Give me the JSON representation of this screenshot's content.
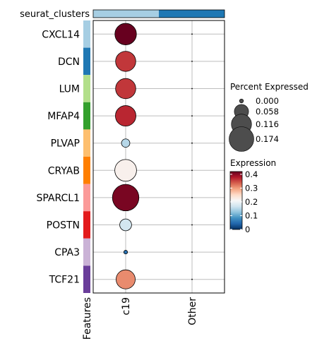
{
  "chart_data": {
    "type": "dotplot",
    "title": "",
    "annotation_label": "seurat_clusters",
    "xlabel": "Features",
    "ylabel": "",
    "features": [
      "CXCL14",
      "DCN",
      "LUM",
      "MFAP4",
      "PLVAP",
      "CRYAB",
      "SPARCL1",
      "POSTN",
      "CPA3",
      "TCF21"
    ],
    "feature_colors": [
      "#A6CEE3",
      "#1F78B4",
      "#B2DF8A",
      "#33A02C",
      "#FDBF6F",
      "#FF7F00",
      "#FB9A99",
      "#E31A1C",
      "#CAB2D6",
      "#6A3D9A"
    ],
    "groups": [
      "c19",
      "Other"
    ],
    "group_colors": [
      "#A6CEE3",
      "#1F78B4"
    ],
    "series": [
      {
        "name": "c19",
        "percent_expressed": [
          0.132,
          0.116,
          0.116,
          0.12,
          0.02,
          0.135,
          0.2,
          0.04,
          0.004,
          0.104
        ],
        "expression": [
          0.42,
          0.36,
          0.36,
          0.37,
          0.15,
          0.22,
          0.41,
          0.17,
          0.05,
          0.31
        ]
      },
      {
        "name": "Other",
        "percent_expressed": [
          0.0,
          0.0,
          0.0,
          0.0,
          0.0,
          0.0,
          0.0,
          0.0,
          0.0,
          0.0
        ],
        "expression": [
          0.0,
          0.0,
          0.0,
          0.0,
          0.0,
          0.0,
          0.0,
          0.0,
          0.0,
          0.0
        ]
      }
    ],
    "size_legend": {
      "title": "Percent Expressed",
      "values": [
        0.0,
        0.058,
        0.116,
        0.174
      ],
      "labels": [
        "0.000",
        "0.058",
        "0.116",
        "0.174"
      ]
    },
    "color_legend": {
      "title": "Expression",
      "range": [
        0,
        0.42
      ],
      "ticks": [
        0,
        0.1,
        0.2,
        0.3,
        0.4
      ],
      "tick_labels": [
        "0",
        "0.1",
        "0.2",
        "0.3",
        "0.4"
      ],
      "colors": [
        "#053061",
        "#2166AC",
        "#4393C3",
        "#92C5DE",
        "#D1E5F0",
        "#F7F7F7",
        "#FDDBC7",
        "#F4A582",
        "#D6604D",
        "#B2182B",
        "#67001F"
      ]
    },
    "grid": true
  }
}
